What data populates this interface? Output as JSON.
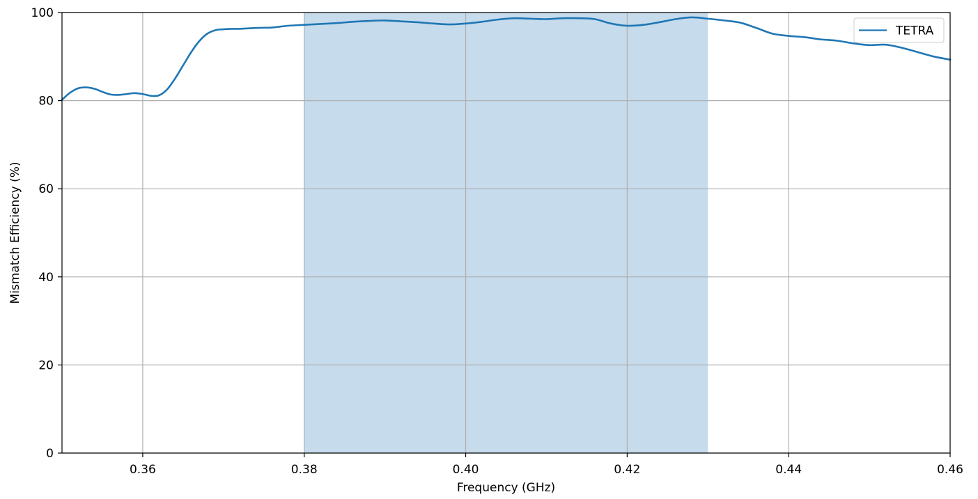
{
  "chart_data": {
    "type": "line",
    "xlabel": "Frequency (GHz)",
    "ylabel": "Mismatch Efficiency (%)",
    "xlim": [
      0.35,
      0.46
    ],
    "ylim": [
      0,
      100
    ],
    "xticks": [
      "0.36",
      "0.38",
      "0.40",
      "0.42",
      "0.44",
      "0.46"
    ],
    "xtick_values": [
      0.36,
      0.38,
      0.4,
      0.42,
      0.44,
      0.46
    ],
    "yticks": [
      "0",
      "20",
      "40",
      "60",
      "80",
      "100"
    ],
    "ytick_values": [
      0,
      20,
      40,
      60,
      80,
      100
    ],
    "grid": true,
    "legend_position": "top-right",
    "shaded_band": {
      "x_start": 0.38,
      "x_end": 0.43,
      "color": "#c6dbec"
    },
    "series": [
      {
        "name": "TETRA",
        "color": "#1f77b4",
        "x": [
          0.35,
          0.351,
          0.352,
          0.353,
          0.354,
          0.355,
          0.356,
          0.357,
          0.358,
          0.359,
          0.36,
          0.361,
          0.362,
          0.363,
          0.364,
          0.365,
          0.366,
          0.367,
          0.368,
          0.369,
          0.37,
          0.371,
          0.372,
          0.374,
          0.376,
          0.378,
          0.38,
          0.382,
          0.384,
          0.386,
          0.388,
          0.39,
          0.392,
          0.394,
          0.396,
          0.398,
          0.4,
          0.402,
          0.404,
          0.406,
          0.408,
          0.41,
          0.412,
          0.414,
          0.416,
          0.418,
          0.42,
          0.422,
          0.424,
          0.426,
          0.428,
          0.43,
          0.432,
          0.434,
          0.436,
          0.438,
          0.44,
          0.442,
          0.444,
          0.446,
          0.448,
          0.45,
          0.452,
          0.454,
          0.456,
          0.458,
          0.46
        ],
        "y": [
          80.2,
          81.8,
          82.8,
          83.0,
          82.7,
          82.0,
          81.4,
          81.3,
          81.5,
          81.7,
          81.5,
          81.1,
          81.2,
          82.5,
          85.0,
          88.0,
          91.0,
          93.5,
          95.2,
          96.0,
          96.2,
          96.3,
          96.3,
          96.5,
          96.6,
          97.0,
          97.2,
          97.4,
          97.6,
          97.9,
          98.1,
          98.2,
          98.0,
          97.8,
          97.5,
          97.3,
          97.5,
          97.9,
          98.4,
          98.7,
          98.6,
          98.5,
          98.7,
          98.7,
          98.5,
          97.5,
          97.0,
          97.2,
          97.8,
          98.5,
          98.9,
          98.6,
          98.2,
          97.7,
          96.5,
          95.2,
          94.7,
          94.4,
          93.9,
          93.6,
          93.0,
          92.6,
          92.7,
          92.0,
          91.0,
          90.0,
          89.3
        ]
      }
    ]
  }
}
